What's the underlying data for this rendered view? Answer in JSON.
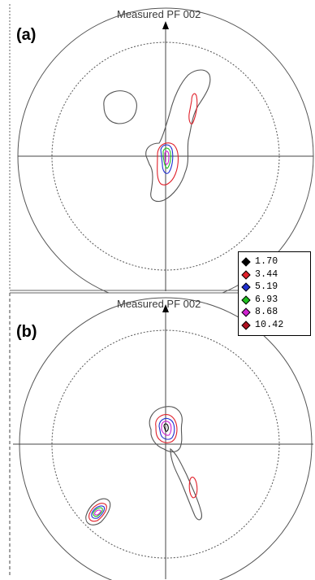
{
  "chart_data": [
    {
      "type": "contour",
      "panel_label": "(a)",
      "title": "Measured PF 002",
      "contour_levels": [
        1.7,
        3.44,
        5.19,
        6.93,
        8.68,
        10.42
      ]
    },
    {
      "type": "contour",
      "panel_label": "(b)",
      "title": "Measured PF 002",
      "contour_levels": [
        1.7,
        3.44,
        5.19,
        6.93,
        8.68,
        10.42
      ]
    }
  ],
  "legend": {
    "items": [
      {
        "label": "1.70",
        "color": "#000000"
      },
      {
        "label": "3.44",
        "color": "#e0202a"
      },
      {
        "label": "5.19",
        "color": "#2030d0"
      },
      {
        "label": "6.93",
        "color": "#20c020"
      },
      {
        "label": "8.68",
        "color": "#d020d0"
      },
      {
        "label": "10.42",
        "color": "#b01020"
      }
    ]
  },
  "colors": {
    "outline": "#555555",
    "dotted": "#555555"
  }
}
